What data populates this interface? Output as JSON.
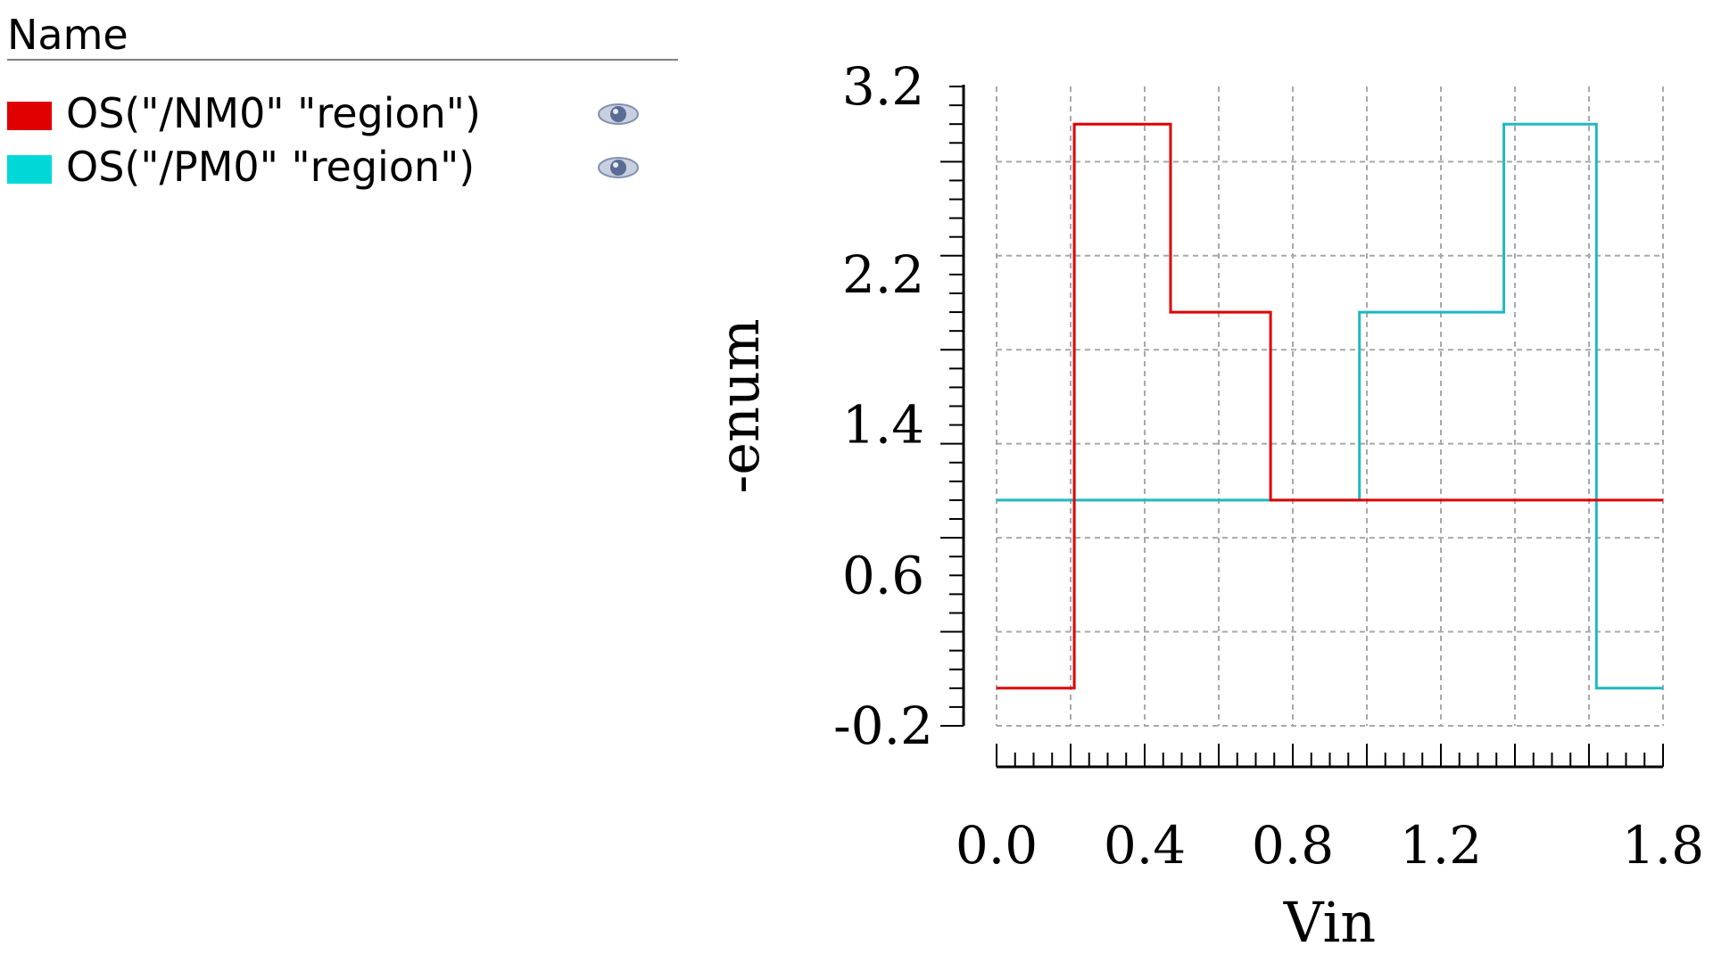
{
  "legend": {
    "header": "Name",
    "entries": [
      {
        "label": "OS(\"/NM0\" \"region\")",
        "color": "#e00000",
        "icon": "eye-icon"
      },
      {
        "label": "OS(\"/PM0\" \"region\")",
        "color": "#00d8d8",
        "icon": "eye-icon"
      }
    ]
  },
  "chart_data": {
    "type": "line",
    "xlabel": "Vin",
    "ylabel": "-enum",
    "xlim": [
      0.0,
      1.8
    ],
    "ylim": [
      -0.2,
      3.2
    ],
    "xticks": [
      "0.0",
      "0.4",
      "0.8",
      "1.2",
      "1.8"
    ],
    "yticks": [
      "3.2",
      "2.2",
      "1.4",
      "0.6",
      "-0.2"
    ],
    "grid": true,
    "series": [
      {
        "name": "OS(\"/NM0\" \"region\")",
        "color": "#e00000",
        "x": [
          0.0,
          0.21,
          0.21,
          0.47,
          0.47,
          0.74,
          0.74,
          1.8
        ],
        "y": [
          0,
          0,
          3,
          3,
          2,
          2,
          1,
          1
        ]
      },
      {
        "name": "OS(\"/PM0\" \"region\")",
        "color": "#20b8c0",
        "x": [
          0.0,
          0.98,
          0.98,
          1.37,
          1.37,
          1.62,
          1.62,
          1.8
        ],
        "y": [
          1,
          1,
          2,
          2,
          3,
          3,
          0,
          0
        ]
      }
    ]
  }
}
